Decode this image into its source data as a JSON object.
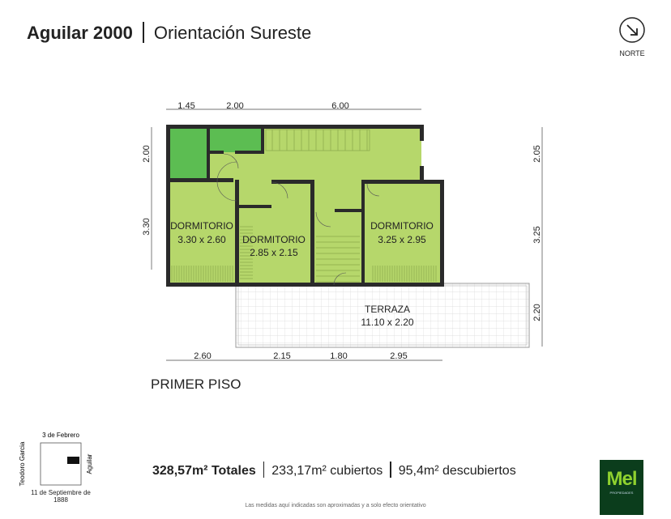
{
  "header": {
    "name": "Aguilar 2000",
    "orientation": "Orientación Sureste"
  },
  "north": {
    "label": "NORTE",
    "icon": "arrow-down-right-circle-icon"
  },
  "plan": {
    "floor": "PRIMER PISO",
    "rooms": [
      {
        "name": "DORMITORIO",
        "size": "3.30 x 2.60"
      },
      {
        "name": "DORMITORIO",
        "size": "2.85 x 2.15"
      },
      {
        "name": "DORMITORIO",
        "size": "3.25 x 2.95"
      },
      {
        "name": "TERRAZA",
        "size": "11.10 x 2.20"
      }
    ],
    "dims_top": [
      "1.45",
      "2.00",
      "6.00"
    ],
    "dims_left": [
      "2.00",
      "3.30"
    ],
    "dims_right": [
      "2.05",
      "3.25",
      "2.20"
    ],
    "dims_bottom": [
      "2.60",
      "2.15",
      "1.80",
      "2.95"
    ],
    "colors": {
      "room": "#b6d76b",
      "bath": "#5cbd52",
      "wall": "#2a2a2a"
    }
  },
  "location": {
    "top": "3 de Febrero",
    "left": "Teodoro Garcia",
    "right": "Aguilar",
    "bottom": "11 de Septiembre de 1888"
  },
  "totals": {
    "total": "328,57m² Totales",
    "covered": "233,17m² cubiertos",
    "uncovered": "95,4m² descubiertos"
  },
  "disclaimer": "Las medidas aquí indicadas son aproximadas y a solo efecto orientativo",
  "logo": {
    "name": "Mel",
    "sub": "PROPIEDADES"
  }
}
